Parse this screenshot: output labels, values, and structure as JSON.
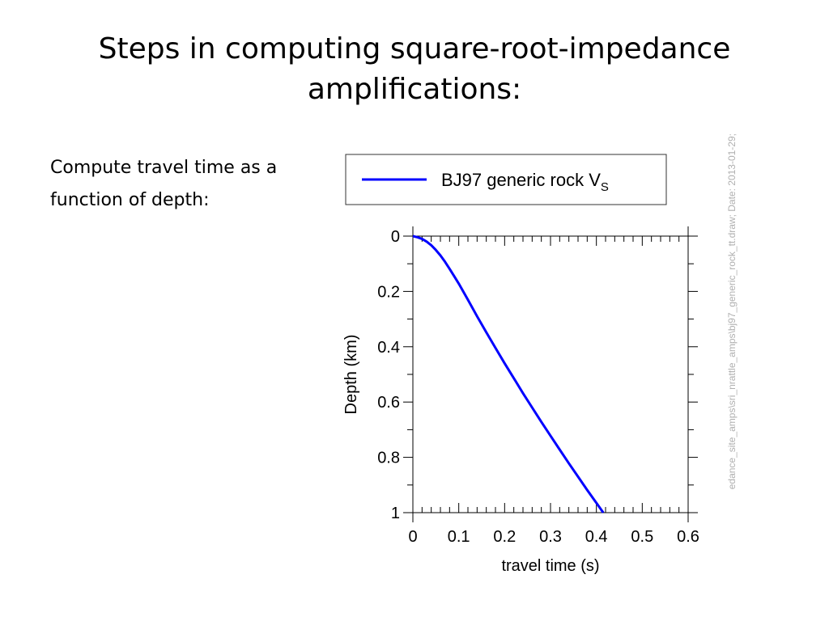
{
  "slide": {
    "title": "Steps in computing square-root-impedance amplifications:",
    "body_text": "Compute travel time as a function of depth:"
  },
  "side_note": "edance_site_amps\\sri_nrattle_amps\\bj97_generic_rock_tt.draw; Date: 2013-01-29;",
  "chart_data": {
    "type": "line",
    "xlabel": "travel time (s)",
    "ylabel": "Depth (km)",
    "xlim": [
      0,
      0.6
    ],
    "ylim": [
      0,
      1
    ],
    "y_inverted": true,
    "x_ticks": [
      {
        "v": 0,
        "label": "0"
      },
      {
        "v": 0.1,
        "label": "0.1"
      },
      {
        "v": 0.2,
        "label": "0.2"
      },
      {
        "v": 0.3,
        "label": "0.3"
      },
      {
        "v": 0.4,
        "label": "0.4"
      },
      {
        "v": 0.5,
        "label": "0.5"
      },
      {
        "v": 0.6,
        "label": "0.6"
      }
    ],
    "y_ticks": [
      {
        "v": 0,
        "label": "0"
      },
      {
        "v": 0.2,
        "label": "0.2"
      },
      {
        "v": 0.4,
        "label": "0.4"
      },
      {
        "v": 0.6,
        "label": "0.6"
      },
      {
        "v": 0.8,
        "label": "0.8"
      },
      {
        "v": 1,
        "label": "1"
      }
    ],
    "legend": {
      "position": "top",
      "label": "BJ97 generic rock V",
      "subscript": "S"
    },
    "series": [
      {
        "name": "BJ97 generic rock VS",
        "color": "#0000ff",
        "points": [
          [
            0,
            0
          ],
          [
            0.01,
            0.004
          ],
          [
            0.02,
            0.01
          ],
          [
            0.03,
            0.02
          ],
          [
            0.04,
            0.033
          ],
          [
            0.05,
            0.05
          ],
          [
            0.06,
            0.07
          ],
          [
            0.07,
            0.093
          ],
          [
            0.08,
            0.118
          ],
          [
            0.09,
            0.145
          ],
          [
            0.1,
            0.172
          ],
          [
            0.12,
            0.23
          ],
          [
            0.14,
            0.29
          ],
          [
            0.16,
            0.348
          ],
          [
            0.18,
            0.404
          ],
          [
            0.2,
            0.46
          ],
          [
            0.22,
            0.514
          ],
          [
            0.24,
            0.568
          ],
          [
            0.26,
            0.62
          ],
          [
            0.28,
            0.672
          ],
          [
            0.3,
            0.722
          ],
          [
            0.32,
            0.772
          ],
          [
            0.34,
            0.822
          ],
          [
            0.36,
            0.87
          ],
          [
            0.38,
            0.918
          ],
          [
            0.4,
            0.965
          ],
          [
            0.415,
            1.0
          ]
        ]
      }
    ]
  }
}
